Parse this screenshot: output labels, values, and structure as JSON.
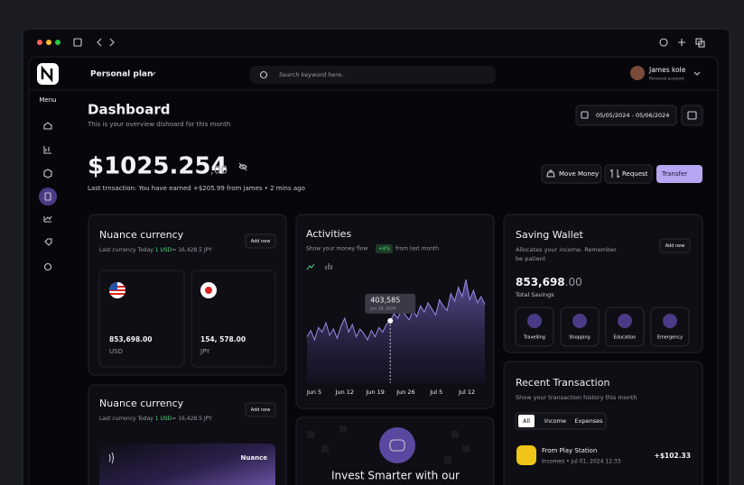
{
  "header": {
    "plan": "Personal plan",
    "search_placeholder": "Search keyword here..",
    "user_name": "James kole",
    "user_role": "Personal account"
  },
  "sidebar": {
    "menu": "Menu"
  },
  "page": {
    "title": "Dashboard",
    "subtitle": "This is your overview dishoard for this month",
    "date_range": "05/05/2024 - 05/06/2024"
  },
  "balance": {
    "amount": "$1025.254",
    "cents": ",00",
    "last_transaction": "Last trnsaction: You have earned +$205.99 from james • 2 mins ago",
    "actions": [
      "Move Money",
      "Request",
      "Transfer"
    ]
  },
  "currency_cards": [
    {
      "title": "Nuance currency",
      "rate_prefix": "Last currency Today",
      "rate_highlight": "1 USD",
      "rate_suffix": "= 16,428.5 JPY",
      "button": "Add new",
      "accounts": [
        {
          "amount": "853,698.00",
          "currency": "USD"
        },
        {
          "amount": "154, 578.00",
          "currency": "JPY"
        }
      ]
    },
    {
      "title": "Nuance currency",
      "rate_prefix": "Last currency Today",
      "rate_highlight": "1 USD",
      "rate_suffix": "= 16,428.5 JPY",
      "button": "Add new",
      "card_brand": "Nuance"
    }
  ],
  "activities": {
    "title": "Activities",
    "subtitle_prefix": "Show your money flow",
    "change": "+4%",
    "subtitle_suffix": "from last month",
    "tooltip": {
      "value": "403,585",
      "date": "Jun 19, 2024"
    },
    "chart": {
      "type": "area",
      "x_labels": [
        "Jun 5",
        "Jun 12",
        "Jun 19",
        "Jun 26",
        "Jul 5",
        "Jul 12"
      ],
      "ylim": [
        0,
        700000
      ],
      "values": [
        300000,
        340000,
        280000,
        360000,
        330000,
        390000,
        310000,
        350000,
        290000,
        370000,
        420000,
        330000,
        380000,
        300000,
        350000,
        320000,
        280000,
        340000,
        300000,
        360000,
        330000,
        380000,
        403585,
        450000,
        420000,
        480000,
        440000,
        410000,
        470000,
        430000,
        500000,
        460000,
        520000,
        480000,
        440000,
        540000,
        500000,
        470000,
        580000,
        530000,
        620000,
        560000,
        670000,
        540000,
        600000,
        520000,
        560000,
        510000
      ]
    }
  },
  "invest": {
    "title": "Invest Smarter with our"
  },
  "saving_wallet": {
    "title": "Saving Wallet",
    "description": [
      "Allocates your income. Remember",
      "be patient"
    ],
    "button": "Add new",
    "amount": "853,698",
    "cents": ".00",
    "amount_label": "Total Savings",
    "goals": [
      "Travelling",
      "Shopping",
      "Education",
      "Emergency"
    ]
  },
  "recent_transaction": {
    "title": "Recent Transaction",
    "subtitle": "Show your transaction history this month",
    "tabs": [
      "All",
      "Income",
      "Expenses"
    ],
    "items": [
      {
        "name": "From Play Station",
        "detail": "Incomes • Jul 01, 2024  12:33",
        "amount": "+$102.33"
      }
    ]
  }
}
